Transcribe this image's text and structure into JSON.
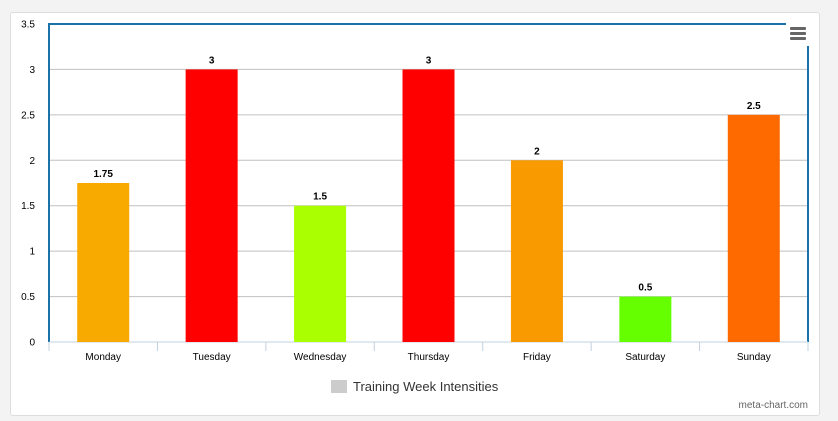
{
  "chart_data": {
    "type": "bar",
    "categories": [
      "Monday",
      "Tuesday",
      "Wednesday",
      "Thursday",
      "Friday",
      "Saturday",
      "Sunday"
    ],
    "values": [
      1.75,
      3,
      1.5,
      3,
      2,
      0.5,
      2.5
    ],
    "data_labels": [
      "1.75",
      "3",
      "1.5",
      "3",
      "2",
      "0.5",
      "2.5"
    ],
    "bar_colors": [
      "#F9AA00",
      "#FF0000",
      "#AAFF00",
      "#FF0000",
      "#F99A00",
      "#66FF00",
      "#FF6A00"
    ],
    "series": [
      {
        "name": "Training Week Intensities",
        "values": [
          1.75,
          3,
          1.5,
          3,
          2,
          0.5,
          2.5
        ]
      }
    ],
    "ylim": [
      0,
      3.5
    ],
    "yticks": [
      "0",
      "0.5",
      "1",
      "1.5",
      "2",
      "2.5",
      "3",
      "3.5"
    ],
    "grid": true,
    "legend_position": "bottom-center",
    "legend_swatch_color": "#cccccc",
    "plot_border_color": "#1a73a8"
  },
  "legend": {
    "label": "Training Week Intensities"
  },
  "credit": "meta-chart.com",
  "menu": {
    "icon": "hamburger-menu-icon"
  }
}
